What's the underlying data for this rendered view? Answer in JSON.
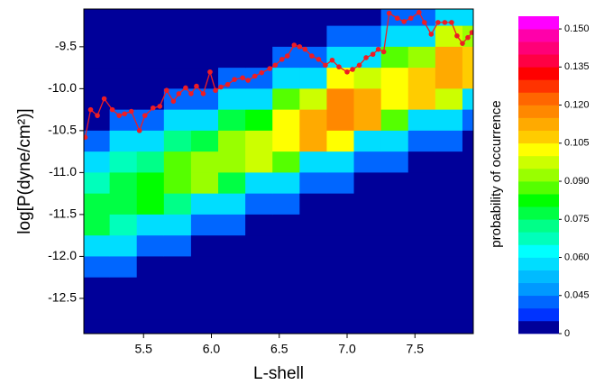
{
  "chart_data": {
    "type": "contour",
    "xlabel": "L-shell",
    "ylabel": "log[P(dyne/cm²)]",
    "xlim": [
      5.06,
      7.93
    ],
    "ylim": [
      -12.92,
      -9.05
    ],
    "xticks": [
      5.5,
      {
        "value": 6,
        "label": "6.0"
      },
      6.5,
      {
        "value": 7,
        "label": "7.0"
      },
      7.5
    ],
    "yticks": [
      -9.5,
      {
        "value": -10,
        "label": "-10.0"
      },
      -10.5,
      {
        "value": -11,
        "label": "-11.0"
      },
      -11.5,
      {
        "value": -12,
        "label": "-12.0"
      },
      -12.5
    ],
    "x": [
      5.15,
      5.35,
      5.55,
      5.75,
      5.95,
      6.15,
      6.35,
      6.55,
      6.75,
      6.95,
      7.15,
      7.35,
      7.55,
      7.75,
      7.95
    ],
    "y": [
      -9.125,
      -9.375,
      -9.625,
      -9.875,
      -10.125,
      -10.375,
      -10.625,
      -10.875,
      -11.125,
      -11.375,
      -11.625,
      -11.875,
      -12.125,
      -12.375,
      -12.625,
      -12.875
    ],
    "z": [
      [
        0,
        0,
        0,
        0,
        0,
        0,
        0.04,
        0.055,
        0.065,
        0.075,
        0.075,
        0.055,
        0.04,
        0,
        0,
        0
      ],
      [
        0,
        0,
        0,
        0,
        0,
        0.04,
        0.055,
        0.065,
        0.075,
        0.075,
        0.065,
        0.055,
        0.04,
        0,
        0,
        0
      ],
      [
        0,
        0,
        0,
        0,
        0,
        0.04,
        0.055,
        0.07,
        0.08,
        0.08,
        0.055,
        0.04,
        0,
        0,
        0,
        0
      ],
      [
        0,
        0,
        0,
        0,
        0.04,
        0.055,
        0.07,
        0.085,
        0.085,
        0.07,
        0.055,
        0.04,
        0,
        0,
        0,
        0
      ],
      [
        0,
        0,
        0,
        0,
        0.04,
        0.055,
        0.075,
        0.09,
        0.09,
        0.055,
        0.04,
        0,
        0,
        0,
        0,
        0
      ],
      [
        0,
        0,
        0,
        0.04,
        0.055,
        0.075,
        0.09,
        0.09,
        0.075,
        0.055,
        0.04,
        0,
        0,
        0,
        0,
        0
      ],
      [
        0,
        0,
        0,
        0.04,
        0.055,
        0.08,
        0.095,
        0.095,
        0.055,
        0.04,
        0,
        0,
        0,
        0,
        0,
        0
      ],
      [
        0,
        0,
        0.04,
        0.055,
        0.085,
        0.1,
        0.1,
        0.085,
        0.055,
        0.04,
        0,
        0,
        0,
        0,
        0,
        0
      ],
      [
        0,
        0,
        0.04,
        0.055,
        0.095,
        0.11,
        0.11,
        0.055,
        0.04,
        0,
        0,
        0,
        0,
        0,
        0,
        0
      ],
      [
        0,
        0.04,
        0.055,
        0.1,
        0.115,
        0.115,
        0.1,
        0.055,
        0.04,
        0,
        0,
        0,
        0,
        0,
        0,
        0
      ],
      [
        0,
        0.04,
        0.055,
        0.095,
        0.11,
        0.11,
        0.055,
        0.04,
        0,
        0,
        0,
        0,
        0,
        0,
        0,
        0
      ],
      [
        0.04,
        0.055,
        0.085,
        0.1,
        0.1,
        0.085,
        0.055,
        0.04,
        0,
        0,
        0,
        0,
        0,
        0,
        0,
        0
      ],
      [
        0.04,
        0.055,
        0.09,
        0.105,
        0.105,
        0.055,
        0.04,
        0,
        0,
        0,
        0,
        0,
        0,
        0,
        0,
        0
      ],
      [
        0.055,
        0.095,
        0.11,
        0.11,
        0.095,
        0.055,
        0.04,
        0,
        0,
        0,
        0,
        0,
        0,
        0,
        0,
        0
      ],
      [
        0.055,
        0.09,
        0.105,
        0.105,
        0.055,
        0.04,
        0,
        0,
        0,
        0,
        0,
        0,
        0,
        0,
        0,
        0
      ]
    ],
    "line": {
      "color": "#ee1c24",
      "x": [
        5.07,
        5.11,
        5.16,
        5.21,
        5.27,
        5.32,
        5.36,
        5.41,
        5.47,
        5.51,
        5.57,
        5.62,
        5.67,
        5.72,
        5.76,
        5.81,
        5.85,
        5.89,
        5.94,
        5.99,
        6.03,
        6.07,
        6.12,
        6.17,
        6.23,
        6.27,
        6.32,
        6.37,
        6.43,
        6.47,
        6.52,
        6.56,
        6.61,
        6.65,
        6.69,
        6.74,
        6.79,
        6.84,
        6.89,
        6.94,
        7.0,
        7.04,
        7.09,
        7.14,
        7.19,
        7.23,
        7.27,
        7.31,
        7.37,
        7.42,
        7.47,
        7.53,
        7.57,
        7.62,
        7.67,
        7.72,
        7.77,
        7.81,
        7.85,
        7.89,
        7.92
      ],
      "values": [
        -10.58,
        -10.25,
        -10.32,
        -10.12,
        -10.25,
        -10.32,
        -10.3,
        -10.27,
        -10.5,
        -10.32,
        -10.23,
        -10.21,
        -10.02,
        -10.15,
        -10.06,
        -9.99,
        -10.06,
        -9.97,
        -10.06,
        -9.8,
        -10.02,
        -9.98,
        -9.95,
        -9.89,
        -9.87,
        -9.9,
        -9.85,
        -9.81,
        -9.76,
        -9.72,
        -9.65,
        -9.61,
        -9.48,
        -9.5,
        -9.53,
        -9.61,
        -9.65,
        -9.72,
        -9.66,
        -9.74,
        -9.8,
        -9.77,
        -9.72,
        -9.63,
        -9.59,
        -9.53,
        -9.56,
        -9.1,
        -9.16,
        -9.2,
        -9.16,
        -9.09,
        -9.21,
        -9.35,
        -9.21,
        -9.21,
        -9.21,
        -9.37,
        -9.46,
        -9.39,
        -9.33
      ]
    },
    "colorbar": {
      "label": "probability of occurrence",
      "clim": [
        0.03,
        0.155
      ],
      "ticks": [
        0,
        0.045,
        {
          "value": 0.06,
          "label": "0.060"
        },
        0.075,
        {
          "value": 0.09,
          "label": "0.090"
        },
        0.105,
        {
          "value": 0.12,
          "label": "0.120"
        },
        0.135,
        {
          "value": 0.15,
          "label": "0.150"
        }
      ],
      "levels": [
        0,
        0.035,
        0.04,
        0.045,
        0.05,
        0.055,
        0.06,
        0.065,
        0.07,
        0.075,
        0.08,
        0.085,
        0.09,
        0.095,
        0.1,
        0.105,
        0.11,
        0.115,
        0.12,
        0.125,
        0.13,
        0.135,
        0.14,
        0.145,
        0.15
      ],
      "colors": [
        "#000099",
        "#0033ff",
        "#0066ff",
        "#0099ff",
        "#00bbff",
        "#00ddff",
        "#00ffff",
        "#00ffbb",
        "#00ff88",
        "#00ff44",
        "#00ff00",
        "#55ff00",
        "#99ff00",
        "#ccff00",
        "#ffff00",
        "#ffcc00",
        "#ffaa00",
        "#ff8800",
        "#ff6600",
        "#ff3300",
        "#ff0000",
        "#ff0044",
        "#ff0077",
        "#ff00aa",
        "#ff00ff"
      ]
    }
  }
}
